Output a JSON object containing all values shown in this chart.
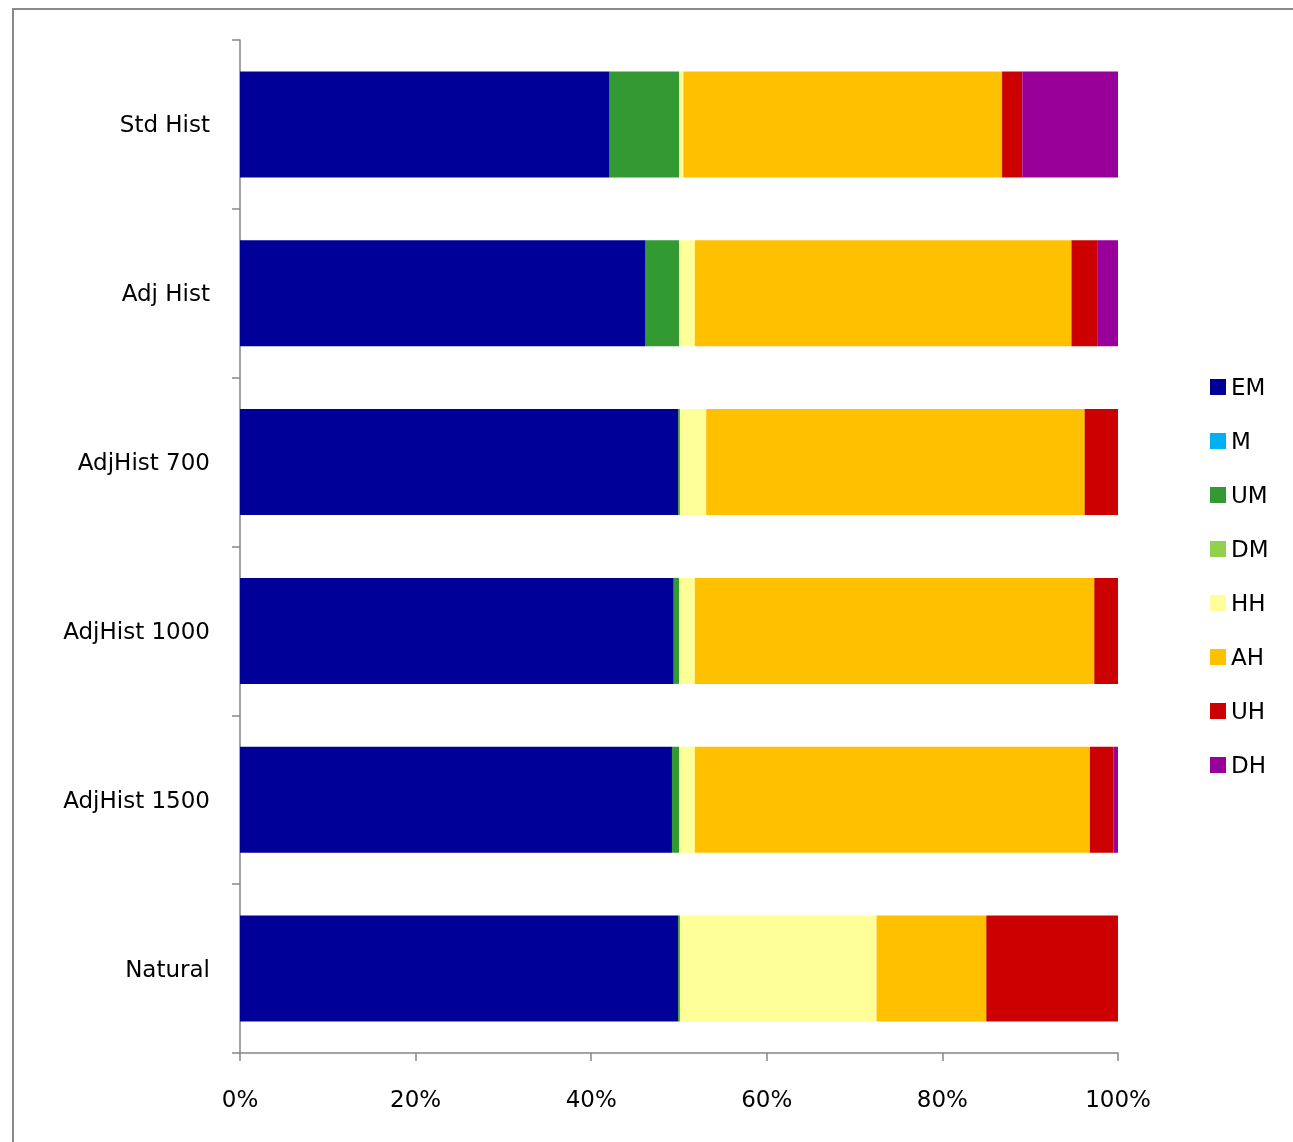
{
  "chart_data": {
    "type": "bar",
    "orientation": "horizontal",
    "stacked": true,
    "categories": [
      "Std Hist",
      "Adj Hist",
      "AdjHist 700",
      "AdjHist 1000",
      "AdjHist 1500",
      "Natural"
    ],
    "series": [
      {
        "name": "EM",
        "color": "#000099",
        "values": [
          42.1,
          46.2,
          49.9,
          49.4,
          49.2,
          49.9
        ]
      },
      {
        "name": "M",
        "color": "#00b0f0",
        "values": [
          0,
          0,
          0,
          0,
          0,
          0
        ]
      },
      {
        "name": "UM",
        "color": "#339933",
        "values": [
          7.9,
          3.8,
          0.2,
          0.6,
          0.8,
          0.2
        ]
      },
      {
        "name": "DM",
        "color": "#92d050",
        "values": [
          0,
          0,
          0,
          0,
          0,
          0
        ]
      },
      {
        "name": "HH",
        "color": "#ffff99",
        "values": [
          0.5,
          1.8,
          3.0,
          1.8,
          1.8,
          22.4
        ]
      },
      {
        "name": "AH",
        "color": "#ffc000",
        "values": [
          36.3,
          42.9,
          43.1,
          45.5,
          45.0,
          12.5
        ]
      },
      {
        "name": "UH",
        "color": "#cc0000",
        "values": [
          2.3,
          3.0,
          3.9,
          2.7,
          2.7,
          15.0
        ]
      },
      {
        "name": "DH",
        "color": "#990099",
        "values": [
          10.9,
          2.3,
          0,
          0,
          0.5,
          0
        ]
      }
    ],
    "xlim": [
      0,
      100
    ],
    "xticks": [
      {
        "value": 0,
        "label": "0%"
      },
      {
        "value": 20,
        "label": "20%"
      },
      {
        "value": 40,
        "label": "40%"
      },
      {
        "value": 60,
        "label": "60%"
      },
      {
        "value": 80,
        "label": "80%"
      },
      {
        "value": 100,
        "label": "100%"
      }
    ],
    "grid": false,
    "legend": "right"
  }
}
